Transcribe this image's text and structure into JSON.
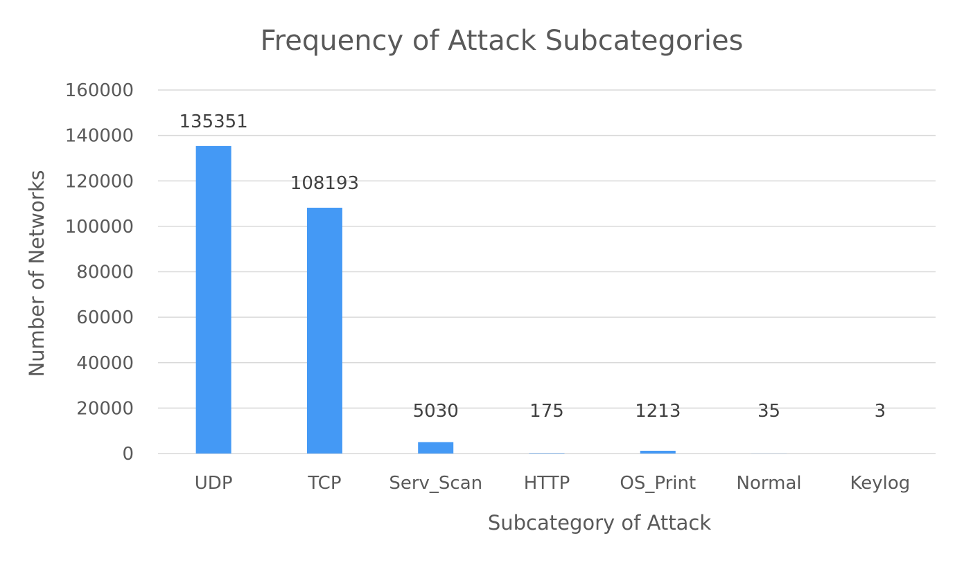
{
  "chart_data": {
    "type": "bar",
    "title": "Frequency of Attack Subcategories",
    "xlabel": "Subcategory of Attack",
    "ylabel": "Number of Networks",
    "categories": [
      "UDP",
      "TCP",
      "Serv_Scan",
      "HTTP",
      "OS_Print",
      "Normal",
      "Keylog"
    ],
    "values": [
      135351,
      108193,
      5030,
      175,
      1213,
      35,
      3
    ],
    "data_labels": [
      "135351",
      "108193",
      "5030",
      "175",
      "1213",
      "35",
      "3"
    ],
    "ylim": [
      0,
      160000
    ],
    "yticks": [
      0,
      20000,
      40000,
      60000,
      80000,
      100000,
      120000,
      140000,
      160000
    ],
    "ytick_labels": [
      "0",
      "20000",
      "40000",
      "60000",
      "80000",
      "100000",
      "120000",
      "140000",
      "160000"
    ],
    "grid": true,
    "legend": "none",
    "bar_color": "#4499f5",
    "text_color": "#595959",
    "gridline_color": "#d9d9d9"
  }
}
